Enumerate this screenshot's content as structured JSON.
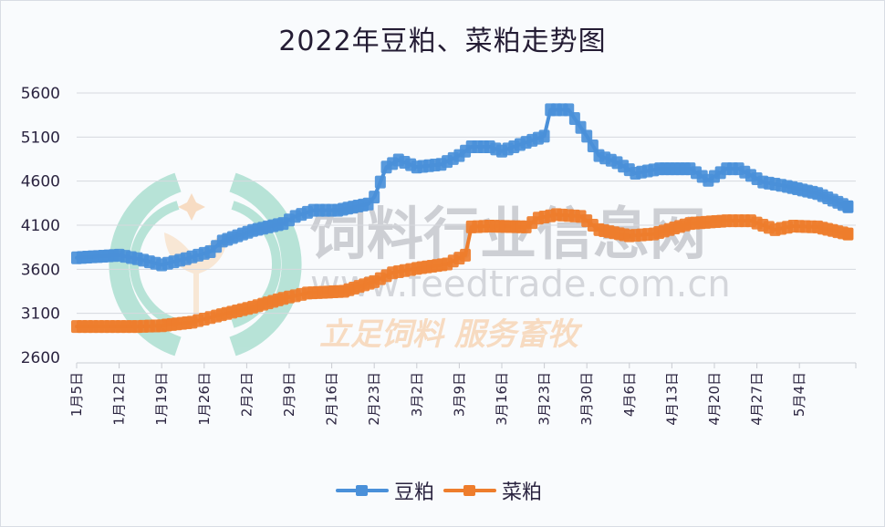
{
  "chart_data": {
    "type": "line",
    "title": "2022年豆粕、菜粕走势图",
    "xlabel": "",
    "ylabel": "",
    "ylim": [
      2600,
      5600
    ],
    "yticks": [
      2600,
      3100,
      3600,
      4100,
      4600,
      5100,
      5600
    ],
    "grid": true,
    "legend_position": "bottom",
    "x_tick_labels": [
      "1月5日",
      "1月12日",
      "1月19日",
      "1月26日",
      "2月2日",
      "2月9日",
      "2月16日",
      "2月23日",
      "3月2日",
      "3月9日",
      "3月16日",
      "3月23日",
      "3月30日",
      "4月6日",
      "4月13日",
      "4月20日",
      "4月27日",
      "5月4日"
    ],
    "x_approx_day_index": [
      0,
      7,
      14,
      21,
      28,
      35,
      42,
      49,
      56,
      63,
      70,
      77,
      84,
      91,
      98,
      105,
      112,
      119
    ],
    "series": [
      {
        "name": "豆粕",
        "color": "#4a90d9",
        "points": [
          {
            "x": 0,
            "y": 3730
          },
          {
            "x": 7,
            "y": 3760
          },
          {
            "x": 10,
            "y": 3720
          },
          {
            "x": 14,
            "y": 3650
          },
          {
            "x": 18,
            "y": 3720
          },
          {
            "x": 22,
            "y": 3800
          },
          {
            "x": 24,
            "y": 3920
          },
          {
            "x": 29,
            "y": 4040
          },
          {
            "x": 34,
            "y": 4120
          },
          {
            "x": 36,
            "y": 4200
          },
          {
            "x": 39,
            "y": 4270
          },
          {
            "x": 43,
            "y": 4270
          },
          {
            "x": 48,
            "y": 4340
          },
          {
            "x": 49,
            "y": 4420
          },
          {
            "x": 51,
            "y": 4760
          },
          {
            "x": 53,
            "y": 4840
          },
          {
            "x": 56,
            "y": 4760
          },
          {
            "x": 60,
            "y": 4790
          },
          {
            "x": 63,
            "y": 4890
          },
          {
            "x": 65,
            "y": 4990
          },
          {
            "x": 68,
            "y": 4990
          },
          {
            "x": 70,
            "y": 4940
          },
          {
            "x": 74,
            "y": 5040
          },
          {
            "x": 77,
            "y": 5110
          },
          {
            "x": 78,
            "y": 5410
          },
          {
            "x": 81,
            "y": 5410
          },
          {
            "x": 84,
            "y": 5110
          },
          {
            "x": 86,
            "y": 4890
          },
          {
            "x": 89,
            "y": 4810
          },
          {
            "x": 92,
            "y": 4690
          },
          {
            "x": 96,
            "y": 4740
          },
          {
            "x": 101,
            "y": 4740
          },
          {
            "x": 104,
            "y": 4610
          },
          {
            "x": 107,
            "y": 4740
          },
          {
            "x": 109,
            "y": 4740
          },
          {
            "x": 113,
            "y": 4590
          },
          {
            "x": 117,
            "y": 4540
          },
          {
            "x": 122,
            "y": 4460
          },
          {
            "x": 127,
            "y": 4310
          }
        ]
      },
      {
        "name": "菜粕",
        "color": "#ee7d2c",
        "points": [
          {
            "x": 0,
            "y": 2950
          },
          {
            "x": 10,
            "y": 2950
          },
          {
            "x": 14,
            "y": 2960
          },
          {
            "x": 19,
            "y": 3000
          },
          {
            "x": 23,
            "y": 3070
          },
          {
            "x": 29,
            "y": 3170
          },
          {
            "x": 34,
            "y": 3270
          },
          {
            "x": 38,
            "y": 3330
          },
          {
            "x": 44,
            "y": 3350
          },
          {
            "x": 49,
            "y": 3460
          },
          {
            "x": 52,
            "y": 3560
          },
          {
            "x": 56,
            "y": 3610
          },
          {
            "x": 61,
            "y": 3660
          },
          {
            "x": 64,
            "y": 3760
          },
          {
            "x": 65,
            "y": 4080
          },
          {
            "x": 68,
            "y": 4090
          },
          {
            "x": 74,
            "y": 4080
          },
          {
            "x": 76,
            "y": 4180
          },
          {
            "x": 79,
            "y": 4220
          },
          {
            "x": 83,
            "y": 4200
          },
          {
            "x": 86,
            "y": 4050
          },
          {
            "x": 91,
            "y": 3980
          },
          {
            "x": 95,
            "y": 4000
          },
          {
            "x": 101,
            "y": 4120
          },
          {
            "x": 107,
            "y": 4150
          },
          {
            "x": 111,
            "y": 4150
          },
          {
            "x": 115,
            "y": 4050
          },
          {
            "x": 118,
            "y": 4090
          },
          {
            "x": 122,
            "y": 4080
          },
          {
            "x": 127,
            "y": 4000
          }
        ]
      }
    ]
  },
  "legend": {
    "items": [
      {
        "label": "豆粕",
        "color": "#4a90d9"
      },
      {
        "label": "菜粕",
        "color": "#ee7d2c"
      }
    ]
  },
  "watermark": {
    "line1": "饲料行业信息网",
    "line2": "www.feedtrade.com.cn",
    "line3": "立足饲料    服务畜牧"
  }
}
